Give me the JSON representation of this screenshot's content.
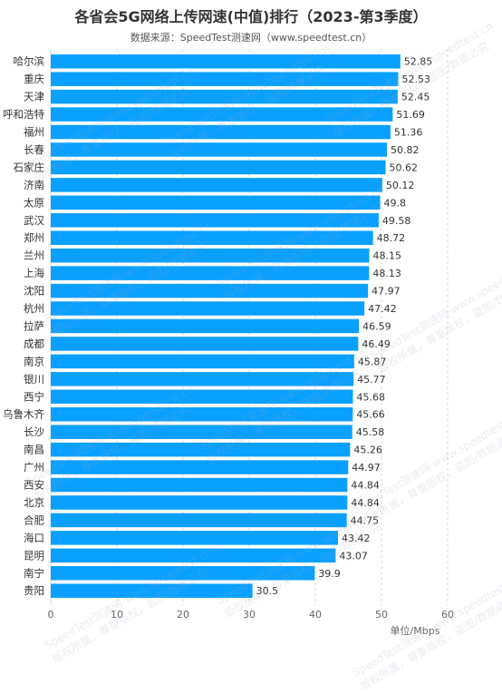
{
  "header": {
    "title": "各省会5G网络上传网速(中值)排行（2023-第3季度）",
    "subtitle": "数据来源：SpeedTest测速网（www.speedtest.cn）"
  },
  "watermark": {
    "line1": "SpeedTest测速网-www.speedtest.cn",
    "line2": "版权所属，尊重版权，盗图/数据必究"
  },
  "colors": {
    "bar": "#0AA0FF",
    "grid": "#D9D9D9",
    "text": "#333333"
  },
  "chart_data": {
    "type": "bar",
    "orientation": "horizontal",
    "title": "各省会5G网络上传网速(中值)排行（2023-第3季度）",
    "subtitle": "数据来源：SpeedTest测速网（www.speedtest.cn）",
    "xlabel": "单位/Mbps",
    "ylabel": "",
    "xlim": [
      0,
      60
    ],
    "xticks": [
      0,
      10,
      20,
      30,
      40,
      50,
      60
    ],
    "grid": "vertical-dashed",
    "categories": [
      "哈尔滨",
      "重庆",
      "天津",
      "呼和浩特",
      "福州",
      "长春",
      "石家庄",
      "济南",
      "太原",
      "武汉",
      "郑州",
      "兰州",
      "上海",
      "沈阳",
      "杭州",
      "拉萨",
      "成都",
      "南京",
      "银川",
      "西宁",
      "乌鲁木齐",
      "长沙",
      "南昌",
      "广州",
      "西安",
      "北京",
      "合肥",
      "海口",
      "昆明",
      "南宁",
      "贵阳"
    ],
    "values": [
      52.85,
      52.53,
      52.45,
      51.69,
      51.36,
      50.82,
      50.62,
      50.12,
      49.8,
      49.58,
      48.72,
      48.15,
      48.13,
      47.97,
      47.42,
      46.59,
      46.49,
      45.87,
      45.77,
      45.68,
      45.66,
      45.58,
      45.26,
      44.97,
      44.84,
      44.84,
      44.75,
      43.42,
      43.07,
      39.9,
      30.5
    ],
    "value_labels": [
      "52.85",
      "52.53",
      "52.45",
      "51.69",
      "51.36",
      "50.82",
      "50.62",
      "50.12",
      "49.8",
      "49.58",
      "48.72",
      "48.15",
      "48.13",
      "47.97",
      "47.42",
      "46.59",
      "46.49",
      "45.87",
      "45.77",
      "45.68",
      "45.66",
      "45.58",
      "45.26",
      "44.97",
      "44.84",
      "44.84",
      "44.75",
      "43.42",
      "43.07",
      "39.9",
      "30.5"
    ]
  }
}
